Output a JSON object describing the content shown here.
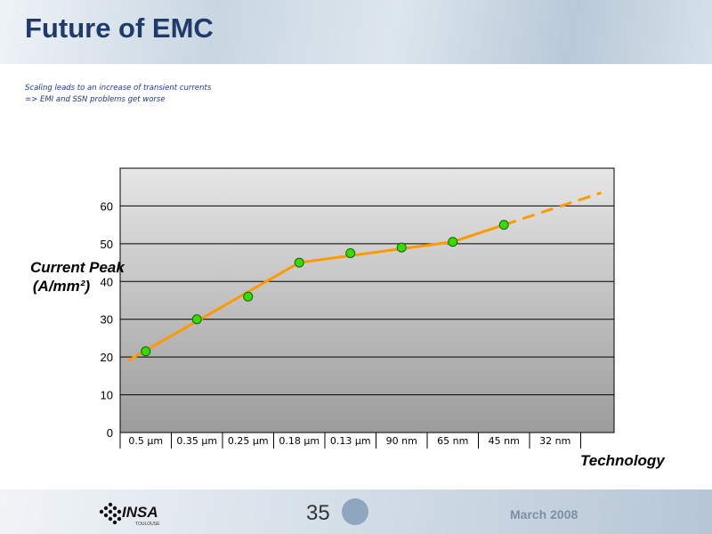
{
  "slide": {
    "title": "Future of EMC",
    "bullets": [
      "Scaling leads to an increase of transient currents",
      "=> EMI and SSN problems get worse"
    ],
    "page_number": "35",
    "date": "March 2008",
    "logo_text": "INSA",
    "logo_subtext": "TOULOUSE"
  },
  "chart_data": {
    "type": "line",
    "title": "",
    "ylabel_lines": [
      "Current Peak",
      "(A/mm²)"
    ],
    "xlabel": "Technology",
    "categories": [
      "0.5 µm",
      "0.35 µm",
      "0.25 µm",
      "0.18 µm",
      "0.13 µm",
      "90 nm",
      "65 nm",
      "45 nm",
      "32 nm"
    ],
    "ylim": [
      0,
      70
    ],
    "yticks": [
      0,
      10,
      20,
      30,
      40,
      50,
      60
    ],
    "grid": true,
    "legend": "none",
    "points": [
      {
        "x": "0.5 µm",
        "y": 21.5
      },
      {
        "x": "0.35 µm",
        "y": 30
      },
      {
        "x": "0.25 µm",
        "y": 36
      },
      {
        "x": "0.18 µm",
        "y": 45
      },
      {
        "x": "0.13 µm",
        "y": 47.5
      },
      {
        "x": "90 nm",
        "y": 49
      },
      {
        "x": "65 nm",
        "y": 50.5
      },
      {
        "x": "45 nm",
        "y": 55
      }
    ],
    "trend_line": [
      {
        "x": 0.15,
        "y": 19
      },
      {
        "x": 3.5,
        "y": 45
      },
      {
        "x": 6.5,
        "y": 50.5
      },
      {
        "x": 7.5,
        "y": 55
      }
    ],
    "trend_extrapolation": [
      {
        "x": 7.5,
        "y": 55
      },
      {
        "x": 9.4,
        "y": 63.5
      }
    ],
    "colors": {
      "marker_fill": "#33dd00",
      "marker_stroke": "#1a5c00",
      "trend": "#ff9900",
      "grid": "#000000"
    }
  }
}
